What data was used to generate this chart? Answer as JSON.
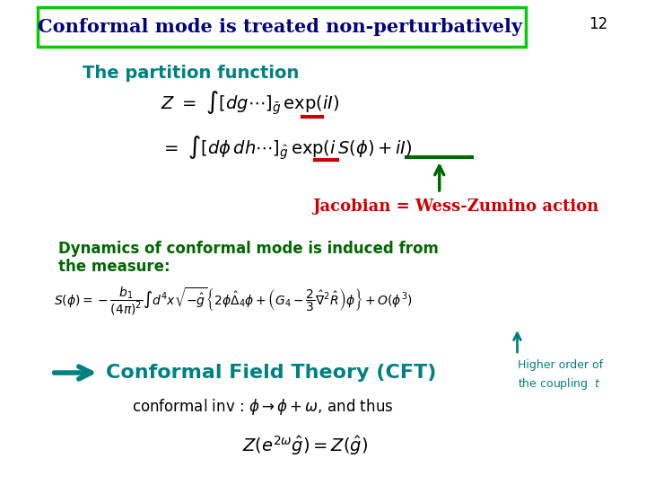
{
  "background_color": "#ffffff",
  "slide_number": "12",
  "title_text": "Conformal mode is treated non-perturbatively",
  "title_color": "#000080",
  "title_box_color": "#00cc00",
  "title_fontsize": 15,
  "section1_color": "#008080",
  "section1_text": "The partition function",
  "jacobian_label": "Jacobian = Wess-Zumino action",
  "jacobian_color": "#cc0000",
  "dynamics_color": "#006600",
  "cft_color": "#008080",
  "higher_order_color": "#008080",
  "red_bar_color": "#cc0000",
  "green_bar_color": "#006600"
}
